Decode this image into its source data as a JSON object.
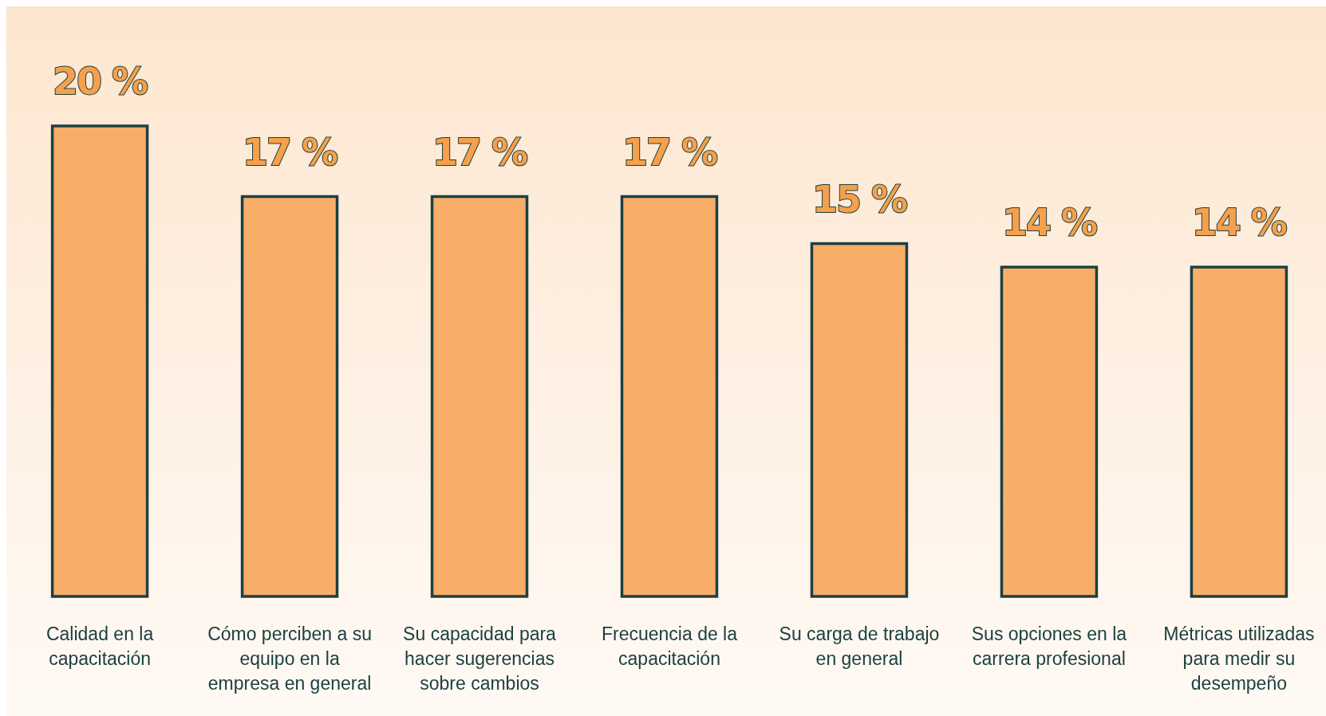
{
  "chart_data": {
    "type": "bar",
    "categories": [
      "Calidad en la capacitación",
      "Cómo perciben a su equipo en la empresa en general",
      "Su capacidad para hacer sugerencias sobre cambios",
      "Frecuencia de la capacitación",
      "Su carga de trabajo en general",
      "Sus opciones en la carrera profesional",
      "Métricas utilizadas para medir su desempeño"
    ],
    "values": [
      20,
      17,
      17,
      17,
      15,
      14,
      14
    ],
    "value_labels": [
      "20 %",
      "17 %",
      "17 %",
      "17 %",
      "15 %",
      "14 %",
      "14 %"
    ],
    "color": "#f8ad68",
    "ylim": [
      0,
      20
    ],
    "tick_labels": "x"
  }
}
